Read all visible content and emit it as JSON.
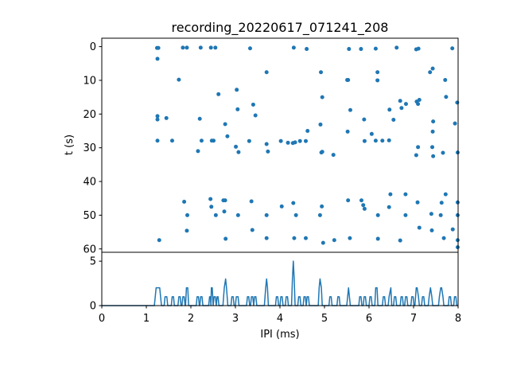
{
  "chart_data": {
    "type": "scatter",
    "title": "recording_20220617_071241_208",
    "color": "#1f77b4",
    "raster": {
      "type": "scatter",
      "ylabel": "t (s)",
      "xlim": [
        0,
        8
      ],
      "ylim": [
        61,
        -2.5
      ],
      "y_inverted": true,
      "yticks": [
        "0",
        "10",
        "20",
        "30",
        "40",
        "50",
        "60"
      ],
      "ytick_values": [
        0,
        10,
        20,
        30,
        40,
        50,
        60
      ],
      "points": [
        [
          1.24,
          0.4
        ],
        [
          1.27,
          0.4
        ],
        [
          1.25,
          3.6
        ],
        [
          1.73,
          9.8
        ],
        [
          1.82,
          0.3
        ],
        [
          1.91,
          0.3
        ],
        [
          2.22,
          0.3
        ],
        [
          2.45,
          0.3
        ],
        [
          2.55,
          0.3
        ],
        [
          2.62,
          14.1
        ],
        [
          2.2,
          21.4
        ],
        [
          2.47,
          27.9
        ],
        [
          2.51,
          27.9
        ],
        [
          2.24,
          27.9
        ],
        [
          2.16,
          31.0
        ],
        [
          2.77,
          23.0
        ],
        [
          2.82,
          26.6
        ],
        [
          3.05,
          18.6
        ],
        [
          3.03,
          12.8
        ],
        [
          3.01,
          29.7
        ],
        [
          3.07,
          31.3
        ],
        [
          3.33,
          0.5
        ],
        [
          3.4,
          17.2
        ],
        [
          3.45,
          20.4
        ],
        [
          3.31,
          28.0
        ],
        [
          3.7,
          7.6
        ],
        [
          3.7,
          28.9
        ],
        [
          3.73,
          31.1
        ],
        [
          1.25,
          20.6
        ],
        [
          1.25,
          21.6
        ],
        [
          1.45,
          21.2
        ],
        [
          1.25,
          27.9
        ],
        [
          1.58,
          27.9
        ],
        [
          4.02,
          28.0
        ],
        [
          4.18,
          28.5
        ],
        [
          4.29,
          28.6
        ],
        [
          4.34,
          28.4
        ],
        [
          4.45,
          28.0
        ],
        [
          4.58,
          28.0
        ],
        [
          4.62,
          25.0
        ],
        [
          4.31,
          0.3
        ],
        [
          4.6,
          0.7
        ],
        [
          4.92,
          7.6
        ],
        [
          4.95,
          15.0
        ],
        [
          4.91,
          23.1
        ],
        [
          4.95,
          31.2
        ],
        [
          4.93,
          31.4
        ],
        [
          5.2,
          32.1
        ],
        [
          5.51,
          9.9
        ],
        [
          5.53,
          9.9
        ],
        [
          5.55,
          0.7
        ],
        [
          5.82,
          0.7
        ],
        [
          5.58,
          18.8
        ],
        [
          5.52,
          25.2
        ],
        [
          5.89,
          21.6
        ],
        [
          5.9,
          28.0
        ],
        [
          6.06,
          25.9
        ],
        [
          6.15,
          27.9
        ],
        [
          6.19,
          7.6
        ],
        [
          6.19,
          10.0
        ],
        [
          6.15,
          0.6
        ],
        [
          6.3,
          27.9
        ],
        [
          6.46,
          18.7
        ],
        [
          6.45,
          27.8
        ],
        [
          6.55,
          21.7
        ],
        [
          6.7,
          16.1
        ],
        [
          6.83,
          17.0
        ],
        [
          6.73,
          18.2
        ],
        [
          6.62,
          0.3
        ],
        [
          7.07,
          16.3
        ],
        [
          7.13,
          15.8
        ],
        [
          7.1,
          17.0
        ],
        [
          7.06,
          0.8
        ],
        [
          7.11,
          0.6
        ],
        [
          7.1,
          29.8
        ],
        [
          7.06,
          32.2
        ],
        [
          7.37,
          7.6
        ],
        [
          7.43,
          6.5
        ],
        [
          7.44,
          22.2
        ],
        [
          7.43,
          25.2
        ],
        [
          7.42,
          29.8
        ],
        [
          7.44,
          32.5
        ],
        [
          7.66,
          31.5
        ],
        [
          7.71,
          9.9
        ],
        [
          7.73,
          14.9
        ],
        [
          7.87,
          0.5
        ],
        [
          7.98,
          16.6
        ],
        [
          7.93,
          22.8
        ],
        [
          7.99,
          31.4
        ],
        [
          1.85,
          46.0
        ],
        [
          1.92,
          50.0
        ],
        [
          1.91,
          54.6
        ],
        [
          1.29,
          57.4
        ],
        [
          2.44,
          45.2
        ],
        [
          2.46,
          47.5
        ],
        [
          2.56,
          50.0
        ],
        [
          2.73,
          45.6
        ],
        [
          2.77,
          45.6
        ],
        [
          2.75,
          48.9
        ],
        [
          2.78,
          57.0
        ],
        [
          3.06,
          50.0
        ],
        [
          3.36,
          45.9
        ],
        [
          3.38,
          54.4
        ],
        [
          3.7,
          50.0
        ],
        [
          3.7,
          56.8
        ],
        [
          4.04,
          47.4
        ],
        [
          4.3,
          46.4
        ],
        [
          4.36,
          50.0
        ],
        [
          4.32,
          56.8
        ],
        [
          4.58,
          56.8
        ],
        [
          4.9,
          50.0
        ],
        [
          4.94,
          47.4
        ],
        [
          4.97,
          58.2
        ],
        [
          5.22,
          57.4
        ],
        [
          5.53,
          45.6
        ],
        [
          5.57,
          56.8
        ],
        [
          5.83,
          45.6
        ],
        [
          5.87,
          47.0
        ],
        [
          5.9,
          48.1
        ],
        [
          6.2,
          50.0
        ],
        [
          6.2,
          57.0
        ],
        [
          6.45,
          47.6
        ],
        [
          6.48,
          43.8
        ],
        [
          6.7,
          57.5
        ],
        [
          6.82,
          43.8
        ],
        [
          6.82,
          50.0
        ],
        [
          7.09,
          46.2
        ],
        [
          7.13,
          53.7
        ],
        [
          7.4,
          49.6
        ],
        [
          7.41,
          54.5
        ],
        [
          7.61,
          50.0
        ],
        [
          7.63,
          46.3
        ],
        [
          7.72,
          43.8
        ],
        [
          7.68,
          56.8
        ],
        [
          7.88,
          54.2
        ],
        [
          7.99,
          46.2
        ],
        [
          7.99,
          50.0
        ],
        [
          7.99,
          57.4
        ],
        [
          7.99,
          59.5
        ]
      ]
    },
    "histogram": {
      "type": "line",
      "xlabel": "IPI (ms)",
      "xlim": [
        0,
        8
      ],
      "ylim": [
        0,
        6
      ],
      "xticks": [
        "0",
        "1",
        "2",
        "3",
        "4",
        "5",
        "6",
        "7",
        "8"
      ],
      "xtick_values": [
        0,
        1,
        2,
        3,
        4,
        5,
        6,
        7,
        8
      ],
      "yticks": [
        "0",
        "5"
      ],
      "ytick_values": [
        0,
        5
      ],
      "points": [
        [
          0,
          0
        ],
        [
          1.18,
          0
        ],
        [
          1.22,
          2
        ],
        [
          1.3,
          2
        ],
        [
          1.34,
          0
        ],
        [
          1.4,
          0
        ],
        [
          1.42,
          1
        ],
        [
          1.46,
          1
        ],
        [
          1.48,
          0
        ],
        [
          1.56,
          0
        ],
        [
          1.58,
          1
        ],
        [
          1.61,
          1
        ],
        [
          1.63,
          0
        ],
        [
          1.71,
          0
        ],
        [
          1.73,
          1
        ],
        [
          1.76,
          1
        ],
        [
          1.78,
          0
        ],
        [
          1.8,
          0
        ],
        [
          1.82,
          1
        ],
        [
          1.85,
          1
        ],
        [
          1.87,
          0
        ],
        [
          1.88,
          0
        ],
        [
          1.9,
          2
        ],
        [
          1.93,
          2
        ],
        [
          1.95,
          0
        ],
        [
          2.12,
          0
        ],
        [
          2.14,
          1
        ],
        [
          2.17,
          1
        ],
        [
          2.19,
          0
        ],
        [
          2.2,
          0
        ],
        [
          2.22,
          1
        ],
        [
          2.25,
          1
        ],
        [
          2.27,
          0
        ],
        [
          2.4,
          0
        ],
        [
          2.42,
          1
        ],
        [
          2.44,
          1
        ],
        [
          2.45,
          0
        ],
        [
          2.46,
          2
        ],
        [
          2.48,
          2
        ],
        [
          2.5,
          0
        ],
        [
          2.52,
          1
        ],
        [
          2.55,
          1
        ],
        [
          2.57,
          0
        ],
        [
          2.59,
          1
        ],
        [
          2.61,
          1
        ],
        [
          2.63,
          0
        ],
        [
          2.72,
          0
        ],
        [
          2.75,
          2
        ],
        [
          2.78,
          3
        ],
        [
          2.8,
          2
        ],
        [
          2.83,
          0
        ],
        [
          2.9,
          0
        ],
        [
          2.92,
          1
        ],
        [
          2.95,
          1
        ],
        [
          2.97,
          0
        ],
        [
          3.0,
          0
        ],
        [
          3.02,
          1
        ],
        [
          3.06,
          1
        ],
        [
          3.08,
          0
        ],
        [
          3.25,
          0
        ],
        [
          3.27,
          1
        ],
        [
          3.3,
          1
        ],
        [
          3.32,
          0
        ],
        [
          3.34,
          0
        ],
        [
          3.36,
          1
        ],
        [
          3.39,
          1
        ],
        [
          3.41,
          0
        ],
        [
          3.43,
          1
        ],
        [
          3.46,
          1
        ],
        [
          3.48,
          0
        ],
        [
          3.65,
          0
        ],
        [
          3.68,
          2
        ],
        [
          3.7,
          3
        ],
        [
          3.72,
          2
        ],
        [
          3.74,
          0
        ],
        [
          3.9,
          0
        ],
        [
          3.92,
          1
        ],
        [
          3.95,
          1
        ],
        [
          3.97,
          0
        ],
        [
          4.0,
          0
        ],
        [
          4.02,
          1
        ],
        [
          4.05,
          1
        ],
        [
          4.07,
          0
        ],
        [
          4.12,
          0
        ],
        [
          4.14,
          1
        ],
        [
          4.17,
          1
        ],
        [
          4.19,
          0
        ],
        [
          4.26,
          0
        ],
        [
          4.28,
          3
        ],
        [
          4.3,
          5
        ],
        [
          4.32,
          3
        ],
        [
          4.34,
          0
        ],
        [
          4.4,
          0
        ],
        [
          4.42,
          1
        ],
        [
          4.45,
          1
        ],
        [
          4.47,
          0
        ],
        [
          4.52,
          0
        ],
        [
          4.54,
          1
        ],
        [
          4.57,
          1
        ],
        [
          4.59,
          0
        ],
        [
          4.61,
          1
        ],
        [
          4.64,
          1
        ],
        [
          4.66,
          0
        ],
        [
          4.86,
          0
        ],
        [
          4.88,
          2
        ],
        [
          4.9,
          3
        ],
        [
          4.93,
          2
        ],
        [
          4.95,
          0
        ],
        [
          5.1,
          0
        ],
        [
          5.12,
          1
        ],
        [
          5.15,
          1
        ],
        [
          5.17,
          0
        ],
        [
          5.28,
          0
        ],
        [
          5.3,
          1
        ],
        [
          5.33,
          1
        ],
        [
          5.35,
          0
        ],
        [
          5.5,
          0
        ],
        [
          5.52,
          1
        ],
        [
          5.54,
          2
        ],
        [
          5.56,
          1
        ],
        [
          5.58,
          0
        ],
        [
          5.77,
          0
        ],
        [
          5.79,
          1
        ],
        [
          5.82,
          1
        ],
        [
          5.84,
          0
        ],
        [
          5.87,
          0
        ],
        [
          5.89,
          1
        ],
        [
          5.92,
          1
        ],
        [
          5.94,
          0
        ],
        [
          6.0,
          0
        ],
        [
          6.02,
          1
        ],
        [
          6.05,
          1
        ],
        [
          6.07,
          0
        ],
        [
          6.13,
          0
        ],
        [
          6.15,
          2
        ],
        [
          6.18,
          2
        ],
        [
          6.2,
          0
        ],
        [
          6.3,
          0
        ],
        [
          6.32,
          1
        ],
        [
          6.35,
          1
        ],
        [
          6.37,
          0
        ],
        [
          6.43,
          0
        ],
        [
          6.45,
          1
        ],
        [
          6.49,
          2
        ],
        [
          6.51,
          0
        ],
        [
          6.55,
          0
        ],
        [
          6.57,
          1
        ],
        [
          6.6,
          1
        ],
        [
          6.62,
          0
        ],
        [
          6.7,
          0
        ],
        [
          6.72,
          1
        ],
        [
          6.75,
          1
        ],
        [
          6.77,
          0
        ],
        [
          6.8,
          0
        ],
        [
          6.82,
          1
        ],
        [
          6.85,
          1
        ],
        [
          6.87,
          0
        ],
        [
          6.94,
          0
        ],
        [
          6.96,
          1
        ],
        [
          6.99,
          1
        ],
        [
          7.01,
          0
        ],
        [
          7.03,
          0
        ],
        [
          7.06,
          2
        ],
        [
          7.08,
          2
        ],
        [
          7.11,
          1
        ],
        [
          7.13,
          0
        ],
        [
          7.18,
          0
        ],
        [
          7.2,
          1
        ],
        [
          7.23,
          1
        ],
        [
          7.25,
          0
        ],
        [
          7.33,
          0
        ],
        [
          7.35,
          1
        ],
        [
          7.38,
          2
        ],
        [
          7.41,
          1
        ],
        [
          7.43,
          0
        ],
        [
          7.56,
          0
        ],
        [
          7.58,
          1
        ],
        [
          7.61,
          2
        ],
        [
          7.63,
          2
        ],
        [
          7.66,
          1
        ],
        [
          7.68,
          0
        ],
        [
          7.78,
          0
        ],
        [
          7.8,
          1
        ],
        [
          7.83,
          1
        ],
        [
          7.85,
          0
        ],
        [
          7.9,
          0
        ],
        [
          7.92,
          1
        ],
        [
          7.95,
          1
        ],
        [
          7.97,
          0
        ],
        [
          8,
          0
        ]
      ]
    }
  }
}
